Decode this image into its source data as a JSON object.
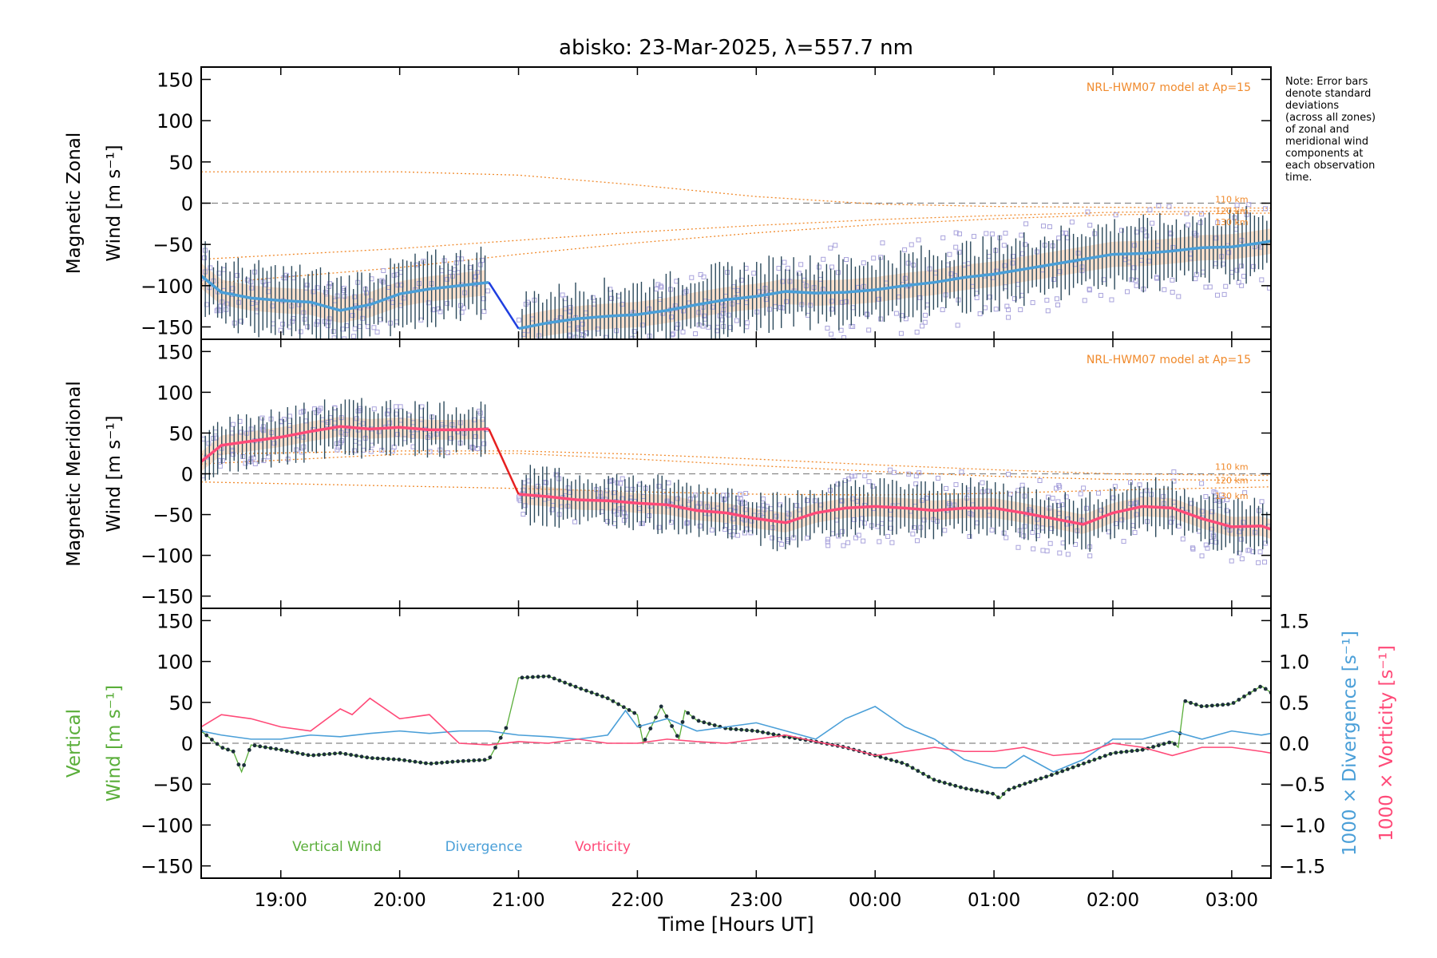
{
  "title": "abisko: 23-Mar-2025, λ=557.7 nm",
  "note_lines": [
    "Note: Error bars",
    "denote standard",
    "deviations",
    "(across all zones)",
    "of zonal and",
    "meridional wind",
    "components at",
    "each observation",
    "time."
  ],
  "colors": {
    "zonal": "#4a9fd8",
    "zonal_gap": "#1f3fe0",
    "meridional": "#ff4a78",
    "meridional_gap": "#e62020",
    "model": "#f08a2c",
    "scatter": "#a9a3dc",
    "vertical": "#5aae3a",
    "divergence": "#4a9fd8",
    "vorticity": "#ff4a78",
    "errorbar": "#2c4a5c"
  },
  "chart_data": [
    {
      "type": "line",
      "panel": "zonal",
      "ylabel_line1": "Magnetic Zonal",
      "ylabel_line2": "Wind [m s⁻¹]",
      "model_label": "NRL-HWM07 model at Ap=15",
      "ylim": [
        -165,
        165
      ],
      "yticks": [
        150,
        100,
        50,
        0,
        -50,
        -100,
        -150
      ],
      "model_curves": [
        {
          "name": "110 km",
          "x": [
            18.33,
            20,
            21,
            22,
            23,
            24,
            25,
            26,
            27.33
          ],
          "y": [
            38,
            38,
            34,
            22,
            8,
            -1,
            -4,
            -5,
            -6
          ]
        },
        {
          "name": "120 km",
          "x": [
            18.33,
            20,
            21,
            22,
            23,
            24,
            25,
            26,
            27.33
          ],
          "y": [
            -68,
            -55,
            -45,
            -35,
            -27,
            -20,
            -15,
            -11,
            -9
          ]
        },
        {
          "name": "130 km",
          "x": [
            18.33,
            20,
            21,
            22,
            23,
            24,
            25,
            26,
            27.33
          ],
          "y": [
            -98,
            -78,
            -62,
            -48,
            -36,
            -26,
            -19,
            -14,
            -12
          ]
        }
      ],
      "model_tags": [
        "110 km",
        "120 km",
        "130 km"
      ],
      "series": {
        "x": [
          18.33,
          18.5,
          18.75,
          19.0,
          19.25,
          19.5,
          19.75,
          20.0,
          20.25,
          20.5,
          20.75,
          21.0,
          21.25,
          21.5,
          21.75,
          22.0,
          22.25,
          22.5,
          22.75,
          23.0,
          23.25,
          23.5,
          23.75,
          24.0,
          24.25,
          24.5,
          24.75,
          25.0,
          25.25,
          25.5,
          25.75,
          26.0,
          26.25,
          26.5,
          26.75,
          27.0,
          27.25,
          27.33
        ],
        "y": [
          -88,
          -108,
          -115,
          -118,
          -120,
          -130,
          -123,
          -110,
          -104,
          -100,
          -96,
          -152,
          -145,
          -140,
          -137,
          -135,
          -130,
          -123,
          -117,
          -113,
          -107,
          -109,
          -108,
          -105,
          -100,
          -96,
          -90,
          -86,
          -80,
          -74,
          -68,
          -62,
          -61,
          -58,
          -54,
          -53,
          -48,
          -46
        ]
      },
      "gap": {
        "x": [
          20.75,
          21.0
        ],
        "y": [
          -96,
          -152
        ]
      },
      "spread": 28
    },
    {
      "type": "line",
      "panel": "meridional",
      "ylabel_line1": "Magnetic Meridional",
      "ylabel_line2": "Wind [m s⁻¹]",
      "model_label": "NRL-HWM07 model at Ap=15",
      "ylim": [
        -165,
        165
      ],
      "yticks": [
        150,
        100,
        50,
        0,
        -50,
        -100,
        -150
      ],
      "model_curves": [
        {
          "name": "110 km",
          "x": [
            18.33,
            20,
            21,
            22,
            23,
            24,
            25,
            26,
            27.33
          ],
          "y": [
            24,
            28,
            28,
            24,
            18,
            11,
            5,
            0,
            -2
          ]
        },
        {
          "name": "120 km",
          "x": [
            18.33,
            20,
            21,
            22,
            23,
            24,
            25,
            26,
            27.33
          ],
          "y": [
            12,
            24,
            25,
            18,
            10,
            3,
            -3,
            -7,
            -8
          ]
        },
        {
          "name": "130 km",
          "x": [
            18.33,
            20,
            21,
            22,
            23,
            24,
            25,
            26,
            27.33
          ],
          "y": [
            -10,
            -15,
            -18,
            -22,
            -25,
            -26,
            -24,
            -20,
            -16
          ]
        }
      ],
      "model_tags": [
        "110 km",
        "120 km",
        "130 km"
      ],
      "series": {
        "x": [
          18.33,
          18.5,
          18.75,
          19.0,
          19.25,
          19.5,
          19.75,
          20.0,
          20.25,
          20.5,
          20.75,
          21.0,
          21.25,
          21.5,
          21.75,
          22.0,
          22.25,
          22.5,
          22.75,
          23.0,
          23.25,
          23.5,
          23.75,
          24.0,
          24.25,
          24.5,
          24.75,
          25.0,
          25.25,
          25.5,
          25.75,
          26.0,
          26.25,
          26.5,
          26.75,
          27.0,
          27.25,
          27.33
        ],
        "y": [
          15,
          35,
          40,
          45,
          52,
          58,
          55,
          57,
          54,
          54,
          55,
          -25,
          -28,
          -32,
          -33,
          -36,
          -38,
          -45,
          -48,
          -55,
          -60,
          -48,
          -42,
          -40,
          -42,
          -45,
          -42,
          -42,
          -48,
          -55,
          -62,
          -48,
          -40,
          -42,
          -55,
          -65,
          -64,
          -68
        ]
      },
      "gap": {
        "x": [
          20.75,
          21.0
        ],
        "y": [
          55,
          -25
        ]
      },
      "spread": 22
    },
    {
      "type": "line",
      "panel": "vertical",
      "ylabel_line1": "Vertical",
      "ylabel_line2": "Wind [m s⁻¹]",
      "ylim": [
        -165,
        165
      ],
      "yticks": [
        150,
        100,
        50,
        0,
        -50,
        -100,
        -150
      ],
      "right_axis": {
        "ylim": [
          -1.65,
          1.65
        ],
        "yticks": [
          1.5,
          1.0,
          0.5,
          0.0,
          -0.5,
          -1.0,
          -1.5
        ],
        "ticklabels": [
          "1.5",
          "1.0",
          "0.5",
          "0.0",
          "−0.5",
          "−1.0",
          "−1.5"
        ],
        "label_divergence": "1000 × Divergence [s⁻¹]",
        "label_vorticity": "1000 × Vorticity [s⁻¹]"
      },
      "series": [
        {
          "name": "Vertical Wind",
          "x": [
            18.33,
            18.5,
            18.6,
            18.67,
            18.75,
            19.0,
            19.25,
            19.5,
            19.75,
            20.0,
            20.25,
            20.5,
            20.75,
            20.9,
            21.0,
            21.25,
            21.5,
            21.75,
            22.0,
            22.05,
            22.2,
            22.35,
            22.4,
            22.5,
            22.75,
            23.0,
            23.25,
            23.5,
            23.75,
            24.0,
            24.25,
            24.5,
            24.75,
            25.0,
            25.05,
            25.1,
            25.25,
            25.5,
            25.75,
            26.0,
            26.25,
            26.5,
            26.55,
            26.6,
            26.75,
            27.0,
            27.25,
            27.33
          ],
          "y": [
            15,
            -5,
            -10,
            -35,
            -2,
            -8,
            -15,
            -12,
            -18,
            -20,
            -25,
            -22,
            -20,
            20,
            80,
            82,
            68,
            55,
            35,
            0,
            45,
            5,
            40,
            28,
            18,
            15,
            8,
            2,
            -5,
            -15,
            -25,
            -45,
            -55,
            -62,
            -68,
            -58,
            -50,
            -38,
            -25,
            -12,
            -8,
            2,
            -5,
            52,
            45,
            48,
            70,
            62
          ]
        },
        {
          "name": "Divergence",
          "axis": "right",
          "x": [
            18.33,
            18.5,
            18.75,
            19.0,
            19.25,
            19.5,
            19.75,
            20.0,
            20.25,
            20.5,
            20.75,
            21.0,
            21.25,
            21.5,
            21.75,
            21.9,
            22.0,
            22.25,
            22.5,
            22.75,
            23.0,
            23.25,
            23.5,
            23.75,
            24.0,
            24.1,
            24.25,
            24.5,
            24.75,
            25.0,
            25.1,
            25.25,
            25.5,
            25.75,
            26.0,
            26.25,
            26.5,
            26.75,
            27.0,
            27.25,
            27.33
          ],
          "y": [
            0.15,
            0.1,
            0.05,
            0.05,
            0.1,
            0.08,
            0.12,
            0.15,
            0.12,
            0.15,
            0.15,
            0.1,
            0.08,
            0.05,
            0.1,
            0.4,
            0.2,
            0.3,
            0.15,
            0.2,
            0.25,
            0.15,
            0.05,
            0.3,
            0.45,
            0.35,
            0.2,
            0.05,
            -0.2,
            -0.3,
            -0.3,
            -0.15,
            -0.35,
            -0.2,
            0.05,
            0.05,
            0.15,
            0.05,
            0.15,
            0.1,
            0.12
          ]
        },
        {
          "name": "Vorticity",
          "axis": "right",
          "x": [
            18.33,
            18.5,
            18.75,
            19.0,
            19.25,
            19.5,
            19.6,
            19.75,
            20.0,
            20.25,
            20.5,
            20.75,
            21.0,
            21.25,
            21.5,
            21.75,
            22.0,
            22.25,
            22.5,
            22.75,
            23.0,
            23.25,
            23.5,
            23.75,
            24.0,
            24.25,
            24.5,
            24.75,
            25.0,
            25.25,
            25.5,
            25.75,
            26.0,
            26.25,
            26.5,
            26.75,
            27.0,
            27.25,
            27.33
          ],
          "y": [
            0.2,
            0.35,
            0.3,
            0.2,
            0.15,
            0.42,
            0.35,
            0.55,
            0.3,
            0.35,
            0.0,
            -0.02,
            0.02,
            0.0,
            0.05,
            0.0,
            0.0,
            0.05,
            0.02,
            0.0,
            0.05,
            0.1,
            0.02,
            -0.05,
            -0.15,
            -0.1,
            -0.05,
            -0.1,
            -0.1,
            -0.05,
            -0.15,
            -0.12,
            0.0,
            -0.05,
            -0.15,
            -0.05,
            -0.05,
            -0.1,
            -0.12
          ]
        }
      ],
      "legend": [
        "Vertical Wind",
        "Divergence",
        "Vorticity"
      ]
    }
  ],
  "xaxis": {
    "label": "Time [Hours UT]",
    "xlim": [
      18.33,
      27.33
    ],
    "ticks": [
      19,
      20,
      21,
      22,
      23,
      24,
      25,
      26,
      27
    ],
    "ticklabels": [
      "19:00",
      "20:00",
      "21:00",
      "22:00",
      "23:00",
      "00:00",
      "01:00",
      "02:00",
      "03:00"
    ]
  }
}
